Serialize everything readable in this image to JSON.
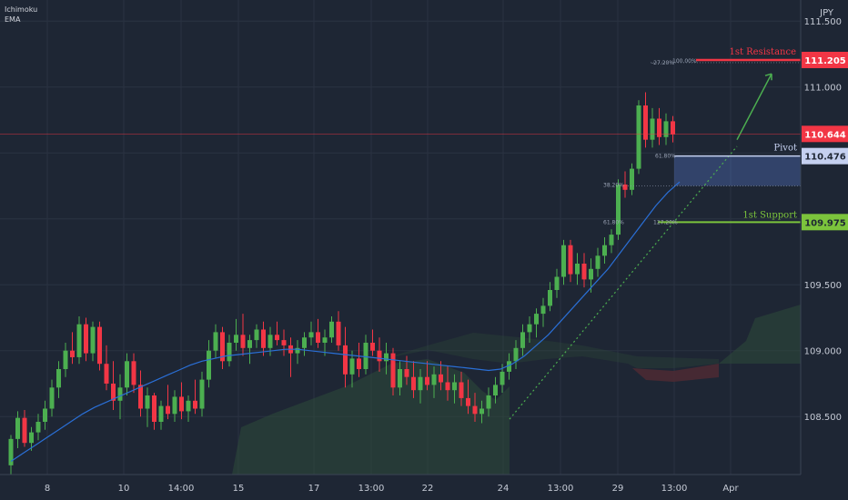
{
  "indicators": [
    "Ichimoku",
    "EMA"
  ],
  "currency_label": "JPY",
  "colors": {
    "background": "#1e2634",
    "up_candle": "#4caf50",
    "down_candle": "#f23645",
    "ema": "#2a6fd6",
    "resistance": "#f23645",
    "pivot": "#8fa0d9",
    "support": "#7cc43c",
    "cloud_bull": "#2d4a3a",
    "cloud_bear": "#4a2a33"
  },
  "levels": {
    "resistance": {
      "label": "1st Resistance",
      "price_label": "111.205",
      "value": 111.205
    },
    "pivot": {
      "label": "Pivot",
      "price_label": "110.476",
      "value": 110.476
    },
    "support": {
      "label": "1st Support",
      "price_label": "109.975",
      "value": 109.975
    },
    "current": {
      "price_label": "110.644",
      "value": 110.644
    }
  },
  "fib_labels": {
    "r1": "-27.20%",
    "r2": "100.00%",
    "p1": "61.80%",
    "p2": "38.20%",
    "s1": "61.80%",
    "s2": "127.20%"
  },
  "chart_data": {
    "type": "candlestick",
    "y_axis_ticks": [
      "111.500",
      "111.000",
      "110.500",
      "110.000",
      "109.500",
      "109.000",
      "108.500"
    ],
    "y_axis_tick_values": [
      111.5,
      111.0,
      110.5,
      110.0,
      109.5,
      109.0,
      108.5
    ],
    "x_axis_ticks": [
      "8",
      "10",
      "14:00",
      "15",
      "17",
      "13:00",
      "22",
      "24",
      "13:00",
      "29",
      "13:00",
      "Apr"
    ],
    "ylim": [
      108.06,
      111.66
    ],
    "grid": true,
    "candles": [
      [
        108.13,
        108.36,
        108.05,
        108.33
      ],
      [
        108.33,
        108.54,
        108.26,
        108.49
      ],
      [
        108.49,
        108.55,
        108.27,
        108.3
      ],
      [
        108.3,
        108.42,
        108.24,
        108.38
      ],
      [
        108.38,
        108.52,
        108.32,
        108.46
      ],
      [
        108.46,
        108.62,
        108.4,
        108.56
      ],
      [
        108.56,
        108.78,
        108.5,
        108.72
      ],
      [
        108.72,
        108.92,
        108.64,
        108.86
      ],
      [
        108.86,
        109.06,
        108.8,
        109.0
      ],
      [
        109.0,
        109.14,
        108.9,
        108.95
      ],
      [
        108.95,
        109.26,
        108.9,
        109.2
      ],
      [
        109.2,
        109.25,
        108.92,
        108.98
      ],
      [
        108.98,
        109.22,
        108.92,
        109.18
      ],
      [
        109.18,
        109.22,
        108.85,
        108.9
      ],
      [
        108.9,
        109.04,
        108.7,
        108.75
      ],
      [
        108.75,
        108.92,
        108.55,
        108.62
      ],
      [
        108.62,
        108.82,
        108.48,
        108.72
      ],
      [
        108.72,
        108.98,
        108.66,
        108.92
      ],
      [
        108.92,
        108.98,
        108.68,
        108.74
      ],
      [
        108.74,
        108.85,
        108.5,
        108.56
      ],
      [
        108.56,
        108.72,
        108.42,
        108.66
      ],
      [
        108.66,
        108.68,
        108.4,
        108.46
      ],
      [
        108.46,
        108.62,
        108.4,
        108.58
      ],
      [
        108.58,
        108.74,
        108.48,
        108.52
      ],
      [
        108.52,
        108.7,
        108.46,
        108.65
      ],
      [
        108.65,
        108.76,
        108.48,
        108.54
      ],
      [
        108.54,
        108.66,
        108.46,
        108.62
      ],
      [
        108.62,
        108.78,
        108.52,
        108.56
      ],
      [
        108.56,
        108.84,
        108.5,
        108.78
      ],
      [
        108.78,
        109.08,
        108.72,
        109.0
      ],
      [
        109.0,
        109.2,
        108.94,
        109.14
      ],
      [
        109.14,
        109.18,
        108.86,
        108.92
      ],
      [
        108.92,
        109.12,
        108.88,
        109.06
      ],
      [
        109.06,
        109.24,
        109.0,
        109.12
      ],
      [
        109.12,
        109.28,
        108.96,
        109.02
      ],
      [
        109.02,
        109.12,
        108.9,
        109.08
      ],
      [
        109.08,
        109.2,
        109.02,
        109.16
      ],
      [
        109.16,
        109.22,
        108.96,
        109.02
      ],
      [
        109.02,
        109.18,
        108.96,
        109.12
      ],
      [
        109.12,
        109.22,
        109.04,
        109.08
      ],
      [
        109.08,
        109.16,
        108.96,
        109.04
      ],
      [
        109.04,
        109.1,
        108.8,
        108.98
      ],
      [
        108.98,
        109.08,
        108.9,
        109.02
      ],
      [
        109.02,
        109.14,
        108.96,
        109.1
      ],
      [
        109.1,
        109.22,
        109.04,
        109.14
      ],
      [
        109.14,
        109.24,
        109.02,
        109.06
      ],
      [
        109.06,
        109.16,
        108.96,
        109.1
      ],
      [
        109.1,
        109.26,
        109.06,
        109.22
      ],
      [
        109.22,
        109.3,
        109.0,
        109.04
      ],
      [
        109.04,
        109.18,
        108.72,
        108.82
      ],
      [
        108.82,
        109.0,
        108.72,
        108.94
      ],
      [
        108.94,
        109.06,
        108.8,
        108.86
      ],
      [
        108.86,
        109.12,
        108.82,
        109.06
      ],
      [
        109.06,
        109.16,
        108.96,
        109.0
      ],
      [
        109.0,
        109.1,
        108.84,
        108.92
      ],
      [
        108.92,
        109.06,
        108.82,
        108.98
      ],
      [
        108.98,
        109.02,
        108.66,
        108.72
      ],
      [
        108.72,
        108.92,
        108.66,
        108.86
      ],
      [
        108.86,
        108.96,
        108.74,
        108.8
      ],
      [
        108.8,
        108.92,
        108.64,
        108.7
      ],
      [
        108.7,
        108.86,
        108.6,
        108.8
      ],
      [
        108.8,
        108.92,
        108.7,
        108.74
      ],
      [
        108.74,
        108.88,
        108.64,
        108.82
      ],
      [
        108.82,
        108.92,
        108.7,
        108.76
      ],
      [
        108.76,
        108.88,
        108.62,
        108.7
      ],
      [
        108.7,
        108.82,
        108.6,
        108.76
      ],
      [
        108.76,
        108.84,
        108.58,
        108.64
      ],
      [
        108.64,
        108.78,
        108.52,
        108.58
      ],
      [
        108.58,
        108.68,
        108.46,
        108.52
      ],
      [
        108.52,
        108.62,
        108.45,
        108.56
      ],
      [
        108.56,
        108.72,
        108.5,
        108.66
      ],
      [
        108.66,
        108.8,
        108.6,
        108.74
      ],
      [
        108.74,
        108.9,
        108.68,
        108.84
      ],
      [
        108.84,
        108.98,
        108.78,
        108.92
      ],
      [
        108.92,
        109.08,
        108.86,
        109.02
      ],
      [
        109.02,
        109.2,
        108.96,
        109.14
      ],
      [
        109.14,
        109.26,
        109.06,
        109.2
      ],
      [
        109.2,
        109.32,
        109.1,
        109.28
      ],
      [
        109.28,
        109.4,
        109.18,
        109.34
      ],
      [
        109.34,
        109.52,
        109.3,
        109.46
      ],
      [
        109.46,
        109.62,
        109.4,
        109.56
      ],
      [
        109.56,
        109.84,
        109.5,
        109.8
      ],
      [
        109.8,
        109.84,
        109.52,
        109.58
      ],
      [
        109.58,
        109.74,
        109.5,
        109.66
      ],
      [
        109.66,
        109.74,
        109.48,
        109.54
      ],
      [
        109.54,
        109.7,
        109.44,
        109.62
      ],
      [
        109.62,
        109.78,
        109.56,
        109.72
      ],
      [
        109.72,
        109.86,
        109.66,
        109.8
      ],
      [
        109.8,
        109.92,
        109.74,
        109.88
      ],
      [
        109.88,
        110.3,
        109.84,
        110.26
      ],
      [
        110.26,
        110.36,
        110.16,
        110.22
      ],
      [
        110.22,
        110.42,
        110.18,
        110.38
      ],
      [
        110.38,
        110.9,
        110.34,
        110.86
      ],
      [
        110.86,
        110.96,
        110.54,
        110.6
      ],
      [
        110.6,
        110.84,
        110.54,
        110.76
      ],
      [
        110.76,
        110.84,
        110.56,
        110.62
      ],
      [
        110.62,
        110.8,
        110.56,
        110.74
      ],
      [
        110.74,
        110.78,
        110.58,
        110.64
      ]
    ],
    "ema": [
      108.16,
      108.22,
      108.28,
      108.34,
      108.4,
      108.46,
      108.52,
      108.57,
      108.61,
      108.65,
      108.69,
      108.73,
      108.77,
      108.81,
      108.85,
      108.89,
      108.92,
      108.94,
      108.96,
      108.97,
      108.98,
      108.99,
      109.0,
      109.01,
      109.01,
      109.0,
      108.99,
      108.98,
      108.97,
      108.96,
      108.95,
      108.94,
      108.93,
      108.92,
      108.91,
      108.9,
      108.89,
      108.88,
      108.87,
      108.86,
      108.85,
      108.86,
      108.9,
      108.96,
      109.04,
      109.12,
      109.22,
      109.32,
      109.42,
      109.52,
      109.62,
      109.74,
      109.86,
      109.98,
      110.1,
      110.2,
      110.28
    ],
    "ema_x_range": [
      0,
      98
    ]
  }
}
